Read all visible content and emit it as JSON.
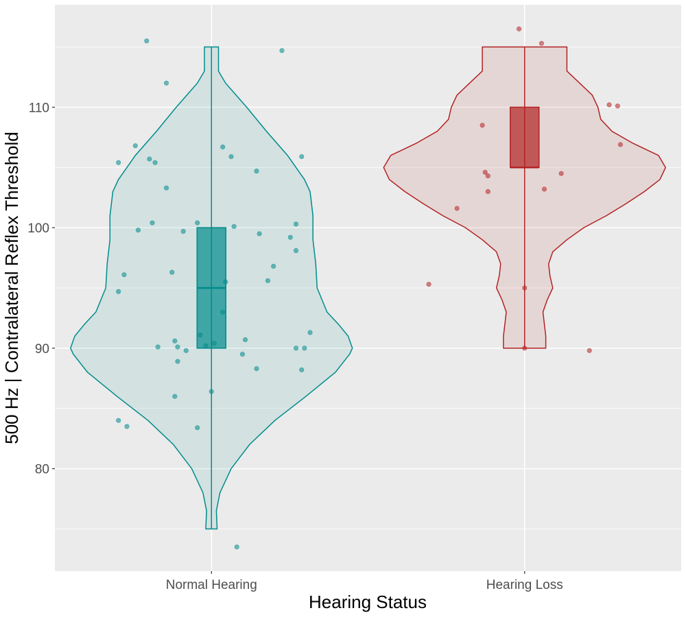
{
  "chart_data": {
    "type": "violin",
    "xlabel": "Hearing Status",
    "ylabel": "500 Hz | Contralateral Reflex Threshold",
    "categories": [
      "Normal Hearing",
      "Hearing Loss"
    ],
    "ylim": [
      71.5,
      118.5
    ],
    "yticks": [
      80,
      90,
      100,
      110
    ],
    "grid": true,
    "colors": {
      "panel": "#ebebeb",
      "grid": "#ffffff",
      "Normal Hearing": "#008b8b",
      "Hearing Loss": "#b22222"
    },
    "violins": [
      {
        "category": "Normal Hearing",
        "range": [
          75,
          115
        ],
        "density": [
          [
            75,
            0.04
          ],
          [
            76.5,
            0.035
          ],
          [
            78,
            0.06
          ],
          [
            80,
            0.14
          ],
          [
            82,
            0.27
          ],
          [
            84,
            0.45
          ],
          [
            86,
            0.67
          ],
          [
            88,
            0.88
          ],
          [
            89.5,
            0.98
          ],
          [
            90,
            1.0
          ],
          [
            91,
            0.97
          ],
          [
            92,
            0.9
          ],
          [
            93,
            0.82
          ],
          [
            95,
            0.75
          ],
          [
            97,
            0.74
          ],
          [
            99,
            0.72
          ],
          [
            101,
            0.72
          ],
          [
            103,
            0.7
          ],
          [
            104,
            0.66
          ],
          [
            105,
            0.6
          ],
          [
            106,
            0.54
          ],
          [
            108,
            0.39
          ],
          [
            110,
            0.25
          ],
          [
            112,
            0.1
          ],
          [
            113,
            0.05
          ],
          [
            114,
            0.05
          ],
          [
            115,
            0.05
          ]
        ],
        "box": {
          "min": 75,
          "q1": 90,
          "median": 95,
          "q3": 100,
          "max": 115
        },
        "points": [
          {
            "x": -0.23,
            "y": 115.5
          },
          {
            "x": 0.25,
            "y": 114.7
          },
          {
            "x": -0.16,
            "y": 112.0
          },
          {
            "x": -0.27,
            "y": 106.8
          },
          {
            "x": -0.33,
            "y": 105.4
          },
          {
            "x": -0.22,
            "y": 105.7
          },
          {
            "x": -0.2,
            "y": 105.4
          },
          {
            "x": 0.04,
            "y": 106.7
          },
          {
            "x": 0.07,
            "y": 105.9
          },
          {
            "x": 0.32,
            "y": 105.9
          },
          {
            "x": 0.16,
            "y": 104.7
          },
          {
            "x": -0.16,
            "y": 103.3
          },
          {
            "x": -0.21,
            "y": 100.4
          },
          {
            "x": -0.26,
            "y": 99.8
          },
          {
            "x": -0.1,
            "y": 99.7
          },
          {
            "x": -0.05,
            "y": 100.4
          },
          {
            "x": 0.08,
            "y": 100.1
          },
          {
            "x": 0.17,
            "y": 99.5
          },
          {
            "x": 0.3,
            "y": 100.3
          },
          {
            "x": 0.28,
            "y": 99.2
          },
          {
            "x": 0.3,
            "y": 98.1
          },
          {
            "x": -0.31,
            "y": 96.1
          },
          {
            "x": -0.14,
            "y": 96.3
          },
          {
            "x": 0.22,
            "y": 96.8
          },
          {
            "x": 0.2,
            "y": 95.6
          },
          {
            "x": 0.05,
            "y": 95.5
          },
          {
            "x": -0.33,
            "y": 94.7
          },
          {
            "x": 0.04,
            "y": 93.0
          },
          {
            "x": 0.35,
            "y": 91.3
          },
          {
            "x": -0.04,
            "y": 91.1
          },
          {
            "x": -0.13,
            "y": 90.6
          },
          {
            "x": 0.12,
            "y": 90.7
          },
          {
            "x": -0.19,
            "y": 90.1
          },
          {
            "x": -0.12,
            "y": 90.1
          },
          {
            "x": -0.09,
            "y": 89.8
          },
          {
            "x": -0.02,
            "y": 90.2
          },
          {
            "x": 0.01,
            "y": 90.4
          },
          {
            "x": 0.11,
            "y": 89.5
          },
          {
            "x": 0.3,
            "y": 90.0
          },
          {
            "x": 0.33,
            "y": 90.0
          },
          {
            "x": -0.12,
            "y": 88.9
          },
          {
            "x": 0.16,
            "y": 88.3
          },
          {
            "x": 0.32,
            "y": 88.2
          },
          {
            "x": 0.0,
            "y": 86.4
          },
          {
            "x": -0.13,
            "y": 86.0
          },
          {
            "x": -0.33,
            "y": 84.0
          },
          {
            "x": -0.3,
            "y": 83.5
          },
          {
            "x": -0.05,
            "y": 83.4
          },
          {
            "x": 0.09,
            "y": 73.5
          }
        ]
      },
      {
        "category": "Hearing Loss",
        "range": [
          90,
          115
        ],
        "density": [
          [
            90,
            0.15
          ],
          [
            91,
            0.15
          ],
          [
            92,
            0.14
          ],
          [
            93,
            0.13
          ],
          [
            94,
            0.16
          ],
          [
            95,
            0.2
          ],
          [
            96,
            0.18
          ],
          [
            97,
            0.17
          ],
          [
            98,
            0.2
          ],
          [
            99,
            0.3
          ],
          [
            100,
            0.42
          ],
          [
            101,
            0.58
          ],
          [
            102,
            0.72
          ],
          [
            103,
            0.85
          ],
          [
            104,
            0.96
          ],
          [
            105,
            1.0
          ],
          [
            106,
            0.95
          ],
          [
            107,
            0.77
          ],
          [
            108,
            0.62
          ],
          [
            109,
            0.54
          ],
          [
            110,
            0.52
          ],
          [
            111,
            0.48
          ],
          [
            112,
            0.39
          ],
          [
            113,
            0.3
          ],
          [
            114,
            0.3
          ],
          [
            115,
            0.3
          ]
        ],
        "box": {
          "min": 90,
          "q1": 105,
          "median": 105,
          "q3": 110,
          "max": 115
        },
        "points": [
          {
            "x": -0.02,
            "y": 116.5
          },
          {
            "x": 0.06,
            "y": 115.3
          },
          {
            "x": 0.3,
            "y": 110.2
          },
          {
            "x": 0.33,
            "y": 110.1
          },
          {
            "x": -0.15,
            "y": 108.5
          },
          {
            "x": 0.34,
            "y": 106.9
          },
          {
            "x": -0.14,
            "y": 104.6
          },
          {
            "x": -0.13,
            "y": 104.3
          },
          {
            "x": 0.13,
            "y": 104.5
          },
          {
            "x": -0.13,
            "y": 103.0
          },
          {
            "x": 0.07,
            "y": 103.2
          },
          {
            "x": -0.24,
            "y": 101.6
          },
          {
            "x": -0.34,
            "y": 95.3
          },
          {
            "x": 0.0,
            "y": 95.0
          },
          {
            "x": 0.0,
            "y": 90.0
          },
          {
            "x": 0.23,
            "y": 89.8
          }
        ]
      }
    ]
  }
}
